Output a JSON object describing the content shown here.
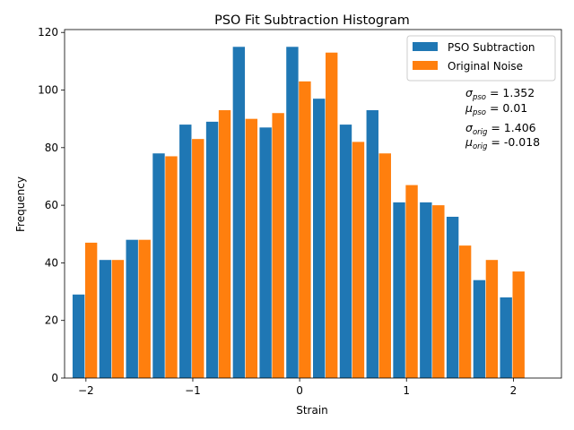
{
  "chart_data": {
    "type": "bar",
    "title": "PSO Fit Subtraction Histogram",
    "xlabel": "Strain",
    "ylabel": "Frequency",
    "xlim": [
      -2.2,
      2.45
    ],
    "ylim": [
      0,
      121
    ],
    "xticks": [
      -2,
      -1,
      0,
      1,
      2
    ],
    "yticks": [
      0,
      20,
      40,
      60,
      80,
      100,
      120
    ],
    "bin_starts": [
      -2.0,
      -1.75,
      -1.5,
      -1.25,
      -1.0,
      -0.75,
      -0.5,
      -0.25,
      0.0,
      0.25,
      0.5,
      0.75,
      1.0,
      1.25,
      1.5,
      1.75
    ],
    "bin_width": 0.25,
    "series": [
      {
        "name": "PSO Subtraction",
        "color": "#1f77b4",
        "values": [
          29,
          41,
          48,
          78,
          88,
          89,
          115,
          87,
          115,
          97,
          88,
          93,
          61,
          61,
          56,
          34
        ]
      },
      {
        "name": "Original Noise",
        "color": "#ff7f0e",
        "values": [
          47,
          41,
          48,
          77,
          83,
          93,
          90,
          92,
          103,
          113,
          82,
          78,
          67,
          60,
          46,
          41
        ]
      }
    ],
    "extra_bar": {
      "series": "Original Noise",
      "bin_start": 2.0,
      "value": 37
    },
    "extra_blue": {
      "series": "PSO Subtraction",
      "bin_start": 2.0,
      "value": 28
    },
    "legend": {
      "position": "top-right"
    },
    "grid": false,
    "annotations": [
      {
        "symbol": "σ",
        "sub": "pso",
        "value": "= 1.352"
      },
      {
        "symbol": "μ",
        "sub": "pso",
        "value": "= 0.01"
      },
      {
        "symbol": "σ",
        "sub": "orig",
        "value": "= 1.406"
      },
      {
        "symbol": "μ",
        "sub": "orig",
        "value": "= -0.018"
      }
    ]
  }
}
